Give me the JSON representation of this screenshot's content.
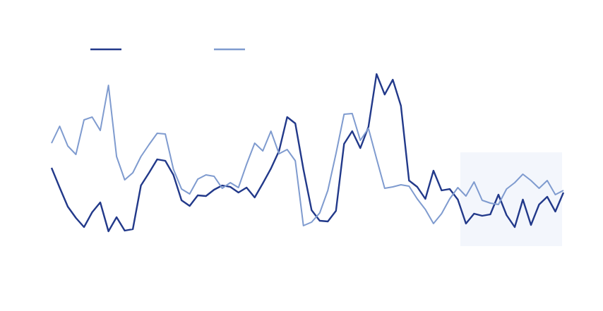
{
  "chart_data": {
    "type": "line",
    "ylim": [
      0,
      100
    ],
    "series": [
      {
        "color": "#22398a",
        "values": [
          44.8,
          33.6,
          22.8,
          16.4,
          11.2,
          19.6,
          25.2,
          8.8,
          16.8,
          9.2,
          10,
          34.8,
          42,
          49.6,
          48.8,
          40.8,
          26.4,
          23.2,
          29.2,
          28.8,
          32.4,
          34.8,
          34,
          30.8,
          33.6,
          28,
          36,
          44.4,
          54.4,
          73.6,
          70,
          44,
          20.8,
          14.8,
          14.4,
          20.4,
          58.4,
          65.6,
          56,
          68,
          98,
          86.4,
          94.8,
          80,
          37.6,
          34,
          27.2,
          43.2,
          32,
          32.8,
          26.8,
          13.2,
          18.8,
          17.6,
          18.4,
          29.6,
          18,
          11.2,
          26.8,
          12.4,
          24,
          28.4,
          20,
          30.8
        ]
      },
      {
        "color": "#7f9bcf",
        "values": [
          58.8,
          68.4,
          57.2,
          52.4,
          72,
          73.6,
          66,
          91.6,
          51.2,
          38,
          42,
          51.2,
          58,
          64.4,
          64,
          44,
          32.8,
          30,
          38.4,
          40.8,
          40,
          33.2,
          36.4,
          33.6,
          46.8,
          58.8,
          54.4,
          65.6,
          52.8,
          55.2,
          48.8,
          12,
          14,
          19.2,
          32,
          52.8,
          75.2,
          75.6,
          60.4,
          67.2,
          50,
          33.2,
          34,
          35.2,
          34.4,
          27.2,
          21.2,
          13.2,
          18.8,
          27.2,
          33.6,
          28.8,
          36.8,
          26.4,
          24.8,
          24,
          32.8,
          36.4,
          41.2,
          37.6,
          33.2,
          37.6,
          29.6,
          32
        ]
      }
    ]
  }
}
